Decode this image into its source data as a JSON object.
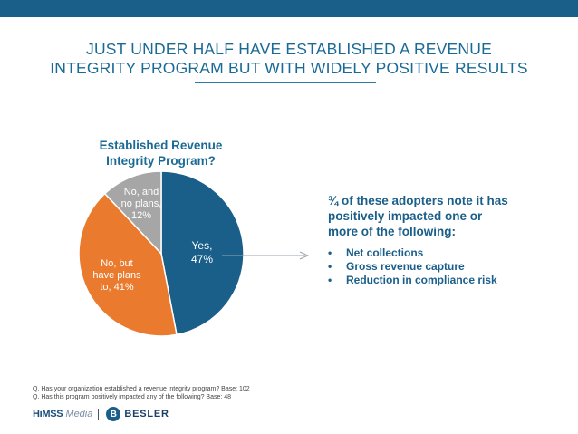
{
  "header": {
    "title_lines": [
      "JUST UNDER HALF HAVE ESTABLISHED A REVENUE",
      "INTEGRITY PROGRAM BUT WITH WIDELY POSITIVE RESULTS"
    ]
  },
  "chart_data": {
    "type": "pie",
    "title_lines": [
      "Established Revenue",
      "Integrity Program?"
    ],
    "slices": [
      {
        "label_lines": [
          "Yes,",
          "47%"
        ],
        "value": 47,
        "color": "#1a5f8a"
      },
      {
        "label_lines": [
          "No, but",
          "have plans",
          "to, 41%"
        ],
        "value": 41,
        "color": "#ea7b2e"
      },
      {
        "label_lines": [
          "No, and",
          "no plans,",
          "12%"
        ],
        "value": 12,
        "color": "#a6a6a6"
      }
    ]
  },
  "callout": {
    "text_lines": [
      "¾ of these adopters note it has",
      "positively impacted one or",
      "more of the following:"
    ],
    "bullet": "•",
    "items": [
      "Net collections",
      "Gross revenue capture",
      "Reduction in compliance risk"
    ]
  },
  "notes": [
    "Q. Has your organization established a revenue integrity program? Base: 102",
    "Q. Has this program positively impacted any of the following? Base: 48"
  ],
  "footer": {
    "himss_bold": "HiMSS",
    "himss_light": "Media",
    "besler_mark": "B",
    "besler_text": "BESLER"
  },
  "colors": {
    "accent": "#1a5f8a",
    "arrow": "#9aa5b0"
  }
}
